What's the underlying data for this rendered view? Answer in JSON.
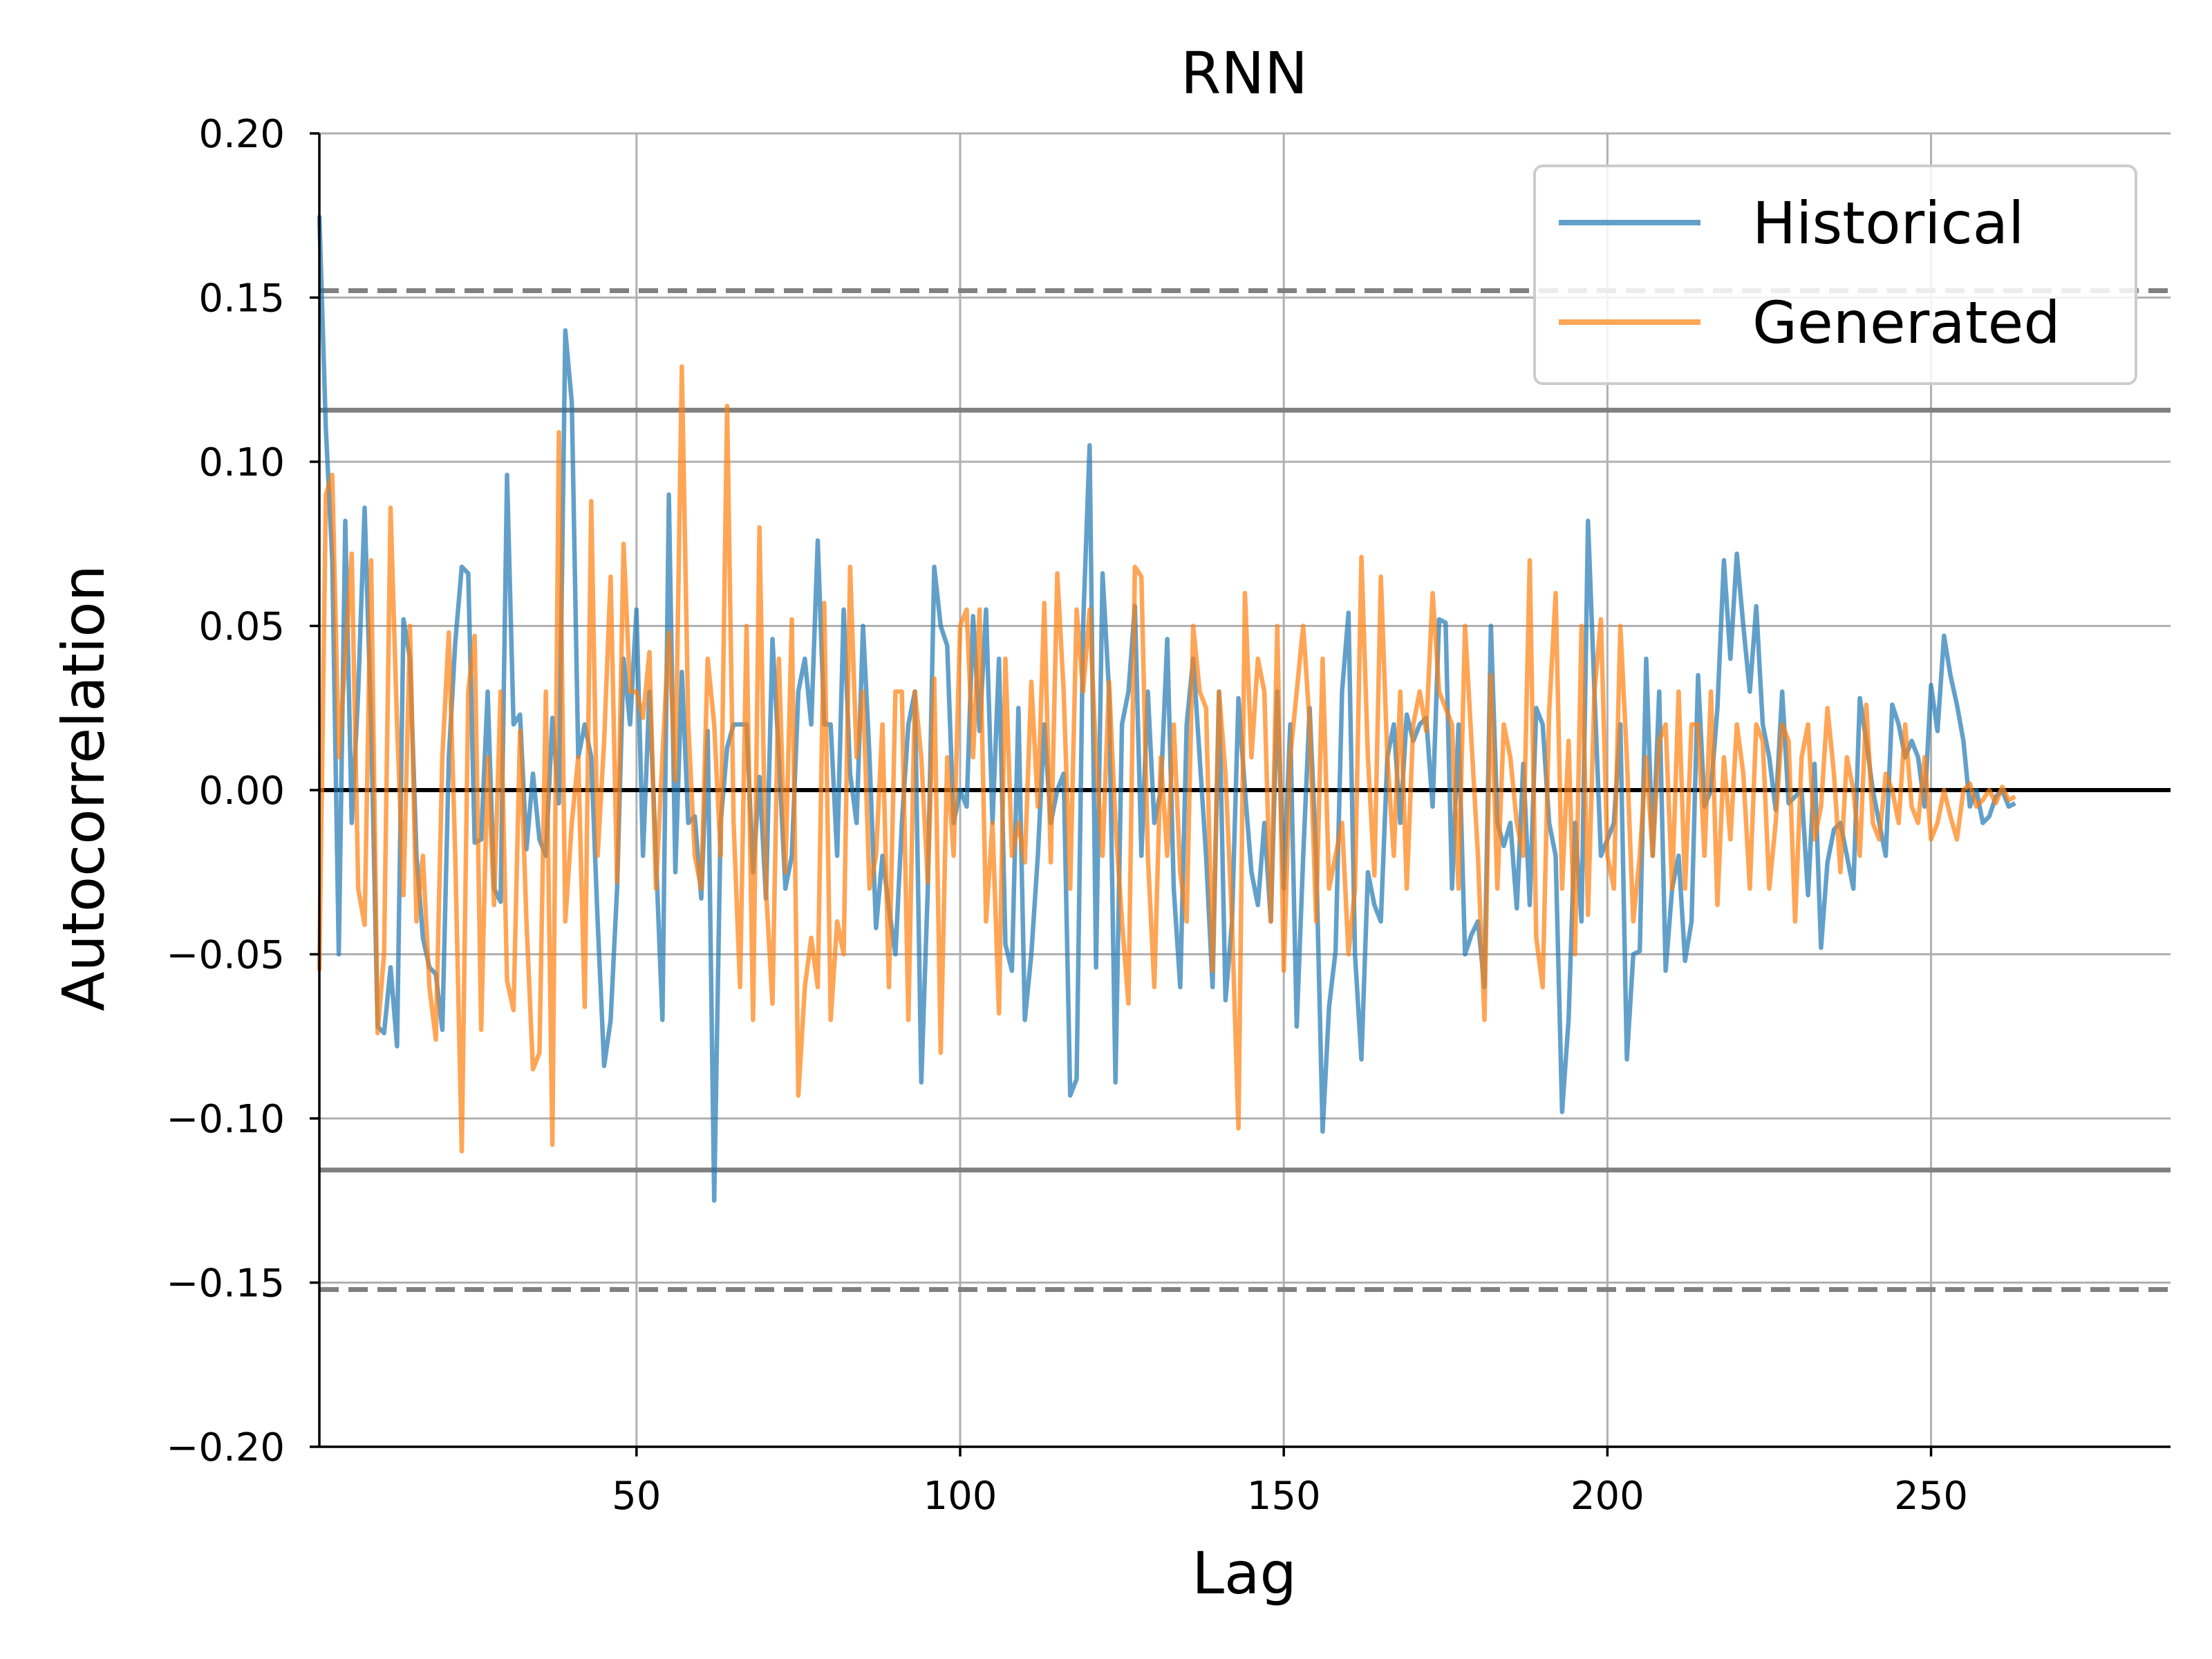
{
  "chart_data": {
    "type": "line",
    "title": "RNN",
    "xlabel": "Lag",
    "ylabel": "Autocorrelation",
    "xlim": [
      1,
      287
    ],
    "ylim": [
      -0.2,
      0.2
    ],
    "x_ticks": [
      50,
      100,
      150,
      200,
      250
    ],
    "y_ticks": [
      0.2,
      0.15,
      0.1,
      0.05,
      0.0,
      -0.05,
      -0.1,
      -0.15,
      -0.2
    ],
    "y_tick_labels": [
      "0.20",
      "0.15",
      "0.10",
      "0.05",
      "0.00",
      "−0.05",
      "−0.10",
      "−0.15",
      "−0.20"
    ],
    "x_tick_labels": [
      "50",
      "100",
      "150",
      "200",
      "250"
    ],
    "grid": true,
    "legend_position": "top-right",
    "reference_lines": {
      "zero": 0.0,
      "solid_bounds": [
        0.1157,
        -0.1157
      ],
      "dashed_bounds": [
        0.1521,
        -0.1521
      ]
    },
    "colors": {
      "historical": "#1f77b4",
      "generated": "#ff7f0e",
      "bounds": "#808080",
      "zero": "#000000",
      "grid": "#b0b0b0"
    },
    "series": [
      {
        "name": "Historical",
        "x_start": 1,
        "values": [
          0.175,
          0.11,
          0.07,
          -0.05,
          0.082,
          -0.01,
          0.03,
          0.086,
          0.02,
          -0.072,
          -0.074,
          -0.054,
          -0.078,
          0.052,
          0.04,
          -0.02,
          -0.045,
          -0.054,
          -0.056,
          -0.073,
          0.01,
          0.045,
          0.068,
          0.066,
          -0.016,
          -0.015,
          0.03,
          -0.03,
          -0.034,
          0.096,
          0.02,
          0.023,
          -0.018,
          0.005,
          -0.015,
          -0.02,
          0.022,
          -0.004,
          0.14,
          0.118,
          0.01,
          0.02,
          0.01,
          -0.04,
          -0.084,
          -0.07,
          -0.03,
          0.04,
          0.02,
          0.055,
          -0.02,
          0.03,
          -0.02,
          -0.07,
          0.09,
          -0.025,
          0.036,
          -0.01,
          -0.008,
          -0.033,
          0.018,
          -0.125,
          -0.01,
          0.013,
          0.02,
          0.02,
          0.02,
          -0.025,
          0.004,
          -0.033,
          0.046,
          0.01,
          -0.03,
          -0.02,
          0.03,
          0.04,
          0.02,
          0.076,
          0.02,
          0.02,
          -0.02,
          0.055,
          0.005,
          -0.01,
          0.05,
          0.01,
          -0.042,
          -0.02,
          -0.036,
          -0.05,
          -0.01,
          0.02,
          0.03,
          -0.089,
          -0.03,
          0.068,
          0.05,
          0.044,
          -0.01,
          0.0,
          -0.005,
          0.053,
          0.018,
          0.055,
          -0.01,
          0.04,
          -0.047,
          -0.055,
          0.025,
          -0.07,
          -0.05,
          -0.02,
          0.02,
          -0.01,
          0.0,
          0.005,
          -0.093,
          -0.088,
          0.05,
          0.105,
          -0.054,
          0.066,
          0.03,
          -0.089,
          0.02,
          0.03,
          0.056,
          -0.02,
          0.03,
          -0.01,
          0.0,
          0.046,
          -0.03,
          -0.06,
          0.02,
          0.04,
          0.01,
          -0.02,
          -0.06,
          0.03,
          -0.064,
          -0.04,
          0.028,
          0.0,
          -0.025,
          -0.035,
          -0.01,
          -0.04,
          0.03,
          -0.03,
          0.02,
          -0.072,
          -0.02,
          0.025,
          -0.02,
          -0.104,
          -0.066,
          -0.049,
          0.03,
          0.054,
          -0.05,
          -0.082,
          -0.025,
          -0.035,
          -0.04,
          0.01,
          0.02,
          -0.01,
          0.023,
          0.015,
          0.02,
          0.022,
          -0.005,
          0.052,
          0.051,
          -0.03,
          0.02,
          -0.05,
          -0.044,
          -0.04,
          -0.06,
          0.05,
          -0.01,
          -0.017,
          -0.01,
          -0.036,
          0.008,
          -0.035,
          0.025,
          0.02,
          -0.01,
          -0.02,
          -0.098,
          -0.07,
          -0.01,
          -0.04,
          0.082,
          0.03,
          -0.02,
          -0.015,
          -0.01,
          0.02,
          -0.082,
          -0.05,
          -0.049,
          0.04,
          -0.02,
          0.03,
          -0.055,
          -0.03,
          -0.02,
          -0.052,
          -0.04,
          0.035,
          -0.005,
          0.0,
          0.025,
          0.07,
          0.04,
          0.072,
          0.05,
          0.03,
          0.056,
          0.02,
          0.01,
          -0.006,
          0.03,
          -0.004,
          -0.002,
          0.0,
          -0.032,
          0.008,
          -0.048,
          -0.022,
          -0.012,
          -0.01,
          -0.02,
          -0.03,
          0.028,
          0.015,
          0.0,
          -0.01,
          -0.02,
          0.026,
          0.02,
          0.01,
          0.015,
          0.01,
          -0.005,
          0.032,
          0.018,
          0.047,
          0.035,
          0.026,
          0.015,
          -0.005,
          0.0,
          -0.01,
          -0.008,
          -0.002,
          0.0,
          -0.005,
          -0.004
        ]
      },
      {
        "name": "Generated",
        "x_start": 1,
        "values": [
          -0.055,
          0.09,
          0.096,
          0.01,
          0.04,
          0.072,
          -0.03,
          -0.041,
          0.07,
          -0.074,
          -0.05,
          0.086,
          0.02,
          -0.032,
          0.05,
          -0.04,
          -0.02,
          -0.06,
          -0.076,
          0.01,
          0.048,
          -0.02,
          -0.11,
          0.03,
          0.047,
          -0.073,
          0.01,
          -0.035,
          0.03,
          -0.058,
          -0.067,
          0.018,
          -0.04,
          -0.085,
          -0.08,
          0.03,
          -0.108,
          0.109,
          -0.04,
          -0.01,
          0.01,
          -0.066,
          0.088,
          -0.02,
          0.015,
          0.065,
          -0.028,
          0.075,
          0.03,
          0.03,
          0.022,
          0.042,
          -0.03,
          0.01,
          0.048,
          0.003,
          0.129,
          0.02,
          -0.02,
          -0.03,
          0.04,
          0.02,
          -0.02,
          0.117,
          -0.01,
          -0.06,
          0.05,
          -0.07,
          0.08,
          -0.03,
          -0.065,
          0.04,
          -0.025,
          0.052,
          -0.093,
          -0.06,
          -0.045,
          -0.06,
          0.057,
          -0.07,
          -0.04,
          -0.05,
          0.068,
          0.01,
          0.03,
          -0.03,
          -0.02,
          0.02,
          -0.06,
          0.03,
          0.03,
          -0.07,
          0.03,
          0.01,
          -0.028,
          0.034,
          -0.08,
          0.01,
          -0.02,
          0.05,
          0.055,
          0.01,
          0.055,
          -0.04,
          -0.01,
          -0.068,
          0.04,
          -0.02,
          -0.01,
          -0.022,
          0.033,
          -0.005,
          0.057,
          -0.022,
          0.066,
          0.03,
          -0.03,
          0.055,
          0.03,
          0.055,
          0.01,
          -0.02,
          0.033,
          -0.01,
          -0.04,
          -0.065,
          0.068,
          0.065,
          -0.02,
          -0.06,
          0.01,
          -0.02,
          0.02,
          -0.025,
          -0.04,
          0.05,
          0.03,
          0.025,
          -0.055,
          0.03,
          0.005,
          -0.04,
          -0.103,
          0.06,
          0.01,
          0.04,
          0.03,
          -0.04,
          0.05,
          -0.055,
          0.01,
          0.03,
          0.05,
          0.02,
          -0.04,
          0.04,
          -0.03,
          -0.02,
          -0.01,
          -0.05,
          -0.03,
          0.071,
          0.01,
          -0.026,
          0.065,
          0.01,
          -0.02,
          0.03,
          -0.03,
          0.02,
          0.03,
          0.018,
          0.06,
          0.03,
          0.025,
          0.02,
          -0.03,
          0.05,
          0.015,
          -0.02,
          -0.07,
          0.035,
          -0.03,
          0.02,
          0.01,
          -0.01,
          -0.02,
          0.07,
          -0.045,
          -0.06,
          0.024,
          0.06,
          -0.03,
          0.015,
          -0.05,
          0.05,
          -0.038,
          0.03,
          0.052,
          -0.02,
          -0.03,
          0.05,
          0.01,
          -0.04,
          -0.02,
          0.01,
          -0.02,
          0.015,
          0.02,
          -0.03,
          0.03,
          -0.03,
          0.02,
          0.02,
          -0.02,
          0.03,
          -0.035,
          0.01,
          -0.015,
          0.02,
          0.005,
          -0.03,
          0.02,
          0.015,
          -0.03,
          -0.01,
          0.02,
          0.015,
          -0.04,
          0.01,
          0.02,
          -0.015,
          -0.005,
          0.025,
          0.005,
          -0.025,
          0.01,
          0.0,
          -0.02,
          0.026,
          -0.01,
          -0.015,
          0.005,
          0.0,
          -0.01,
          0.02,
          -0.005,
          -0.01,
          0.01,
          -0.015,
          -0.01,
          0.0,
          -0.008,
          -0.015,
          0.0,
          0.002,
          -0.005,
          -0.003,
          0.0,
          -0.004,
          0.001,
          -0.003,
          -0.002
        ]
      }
    ]
  }
}
